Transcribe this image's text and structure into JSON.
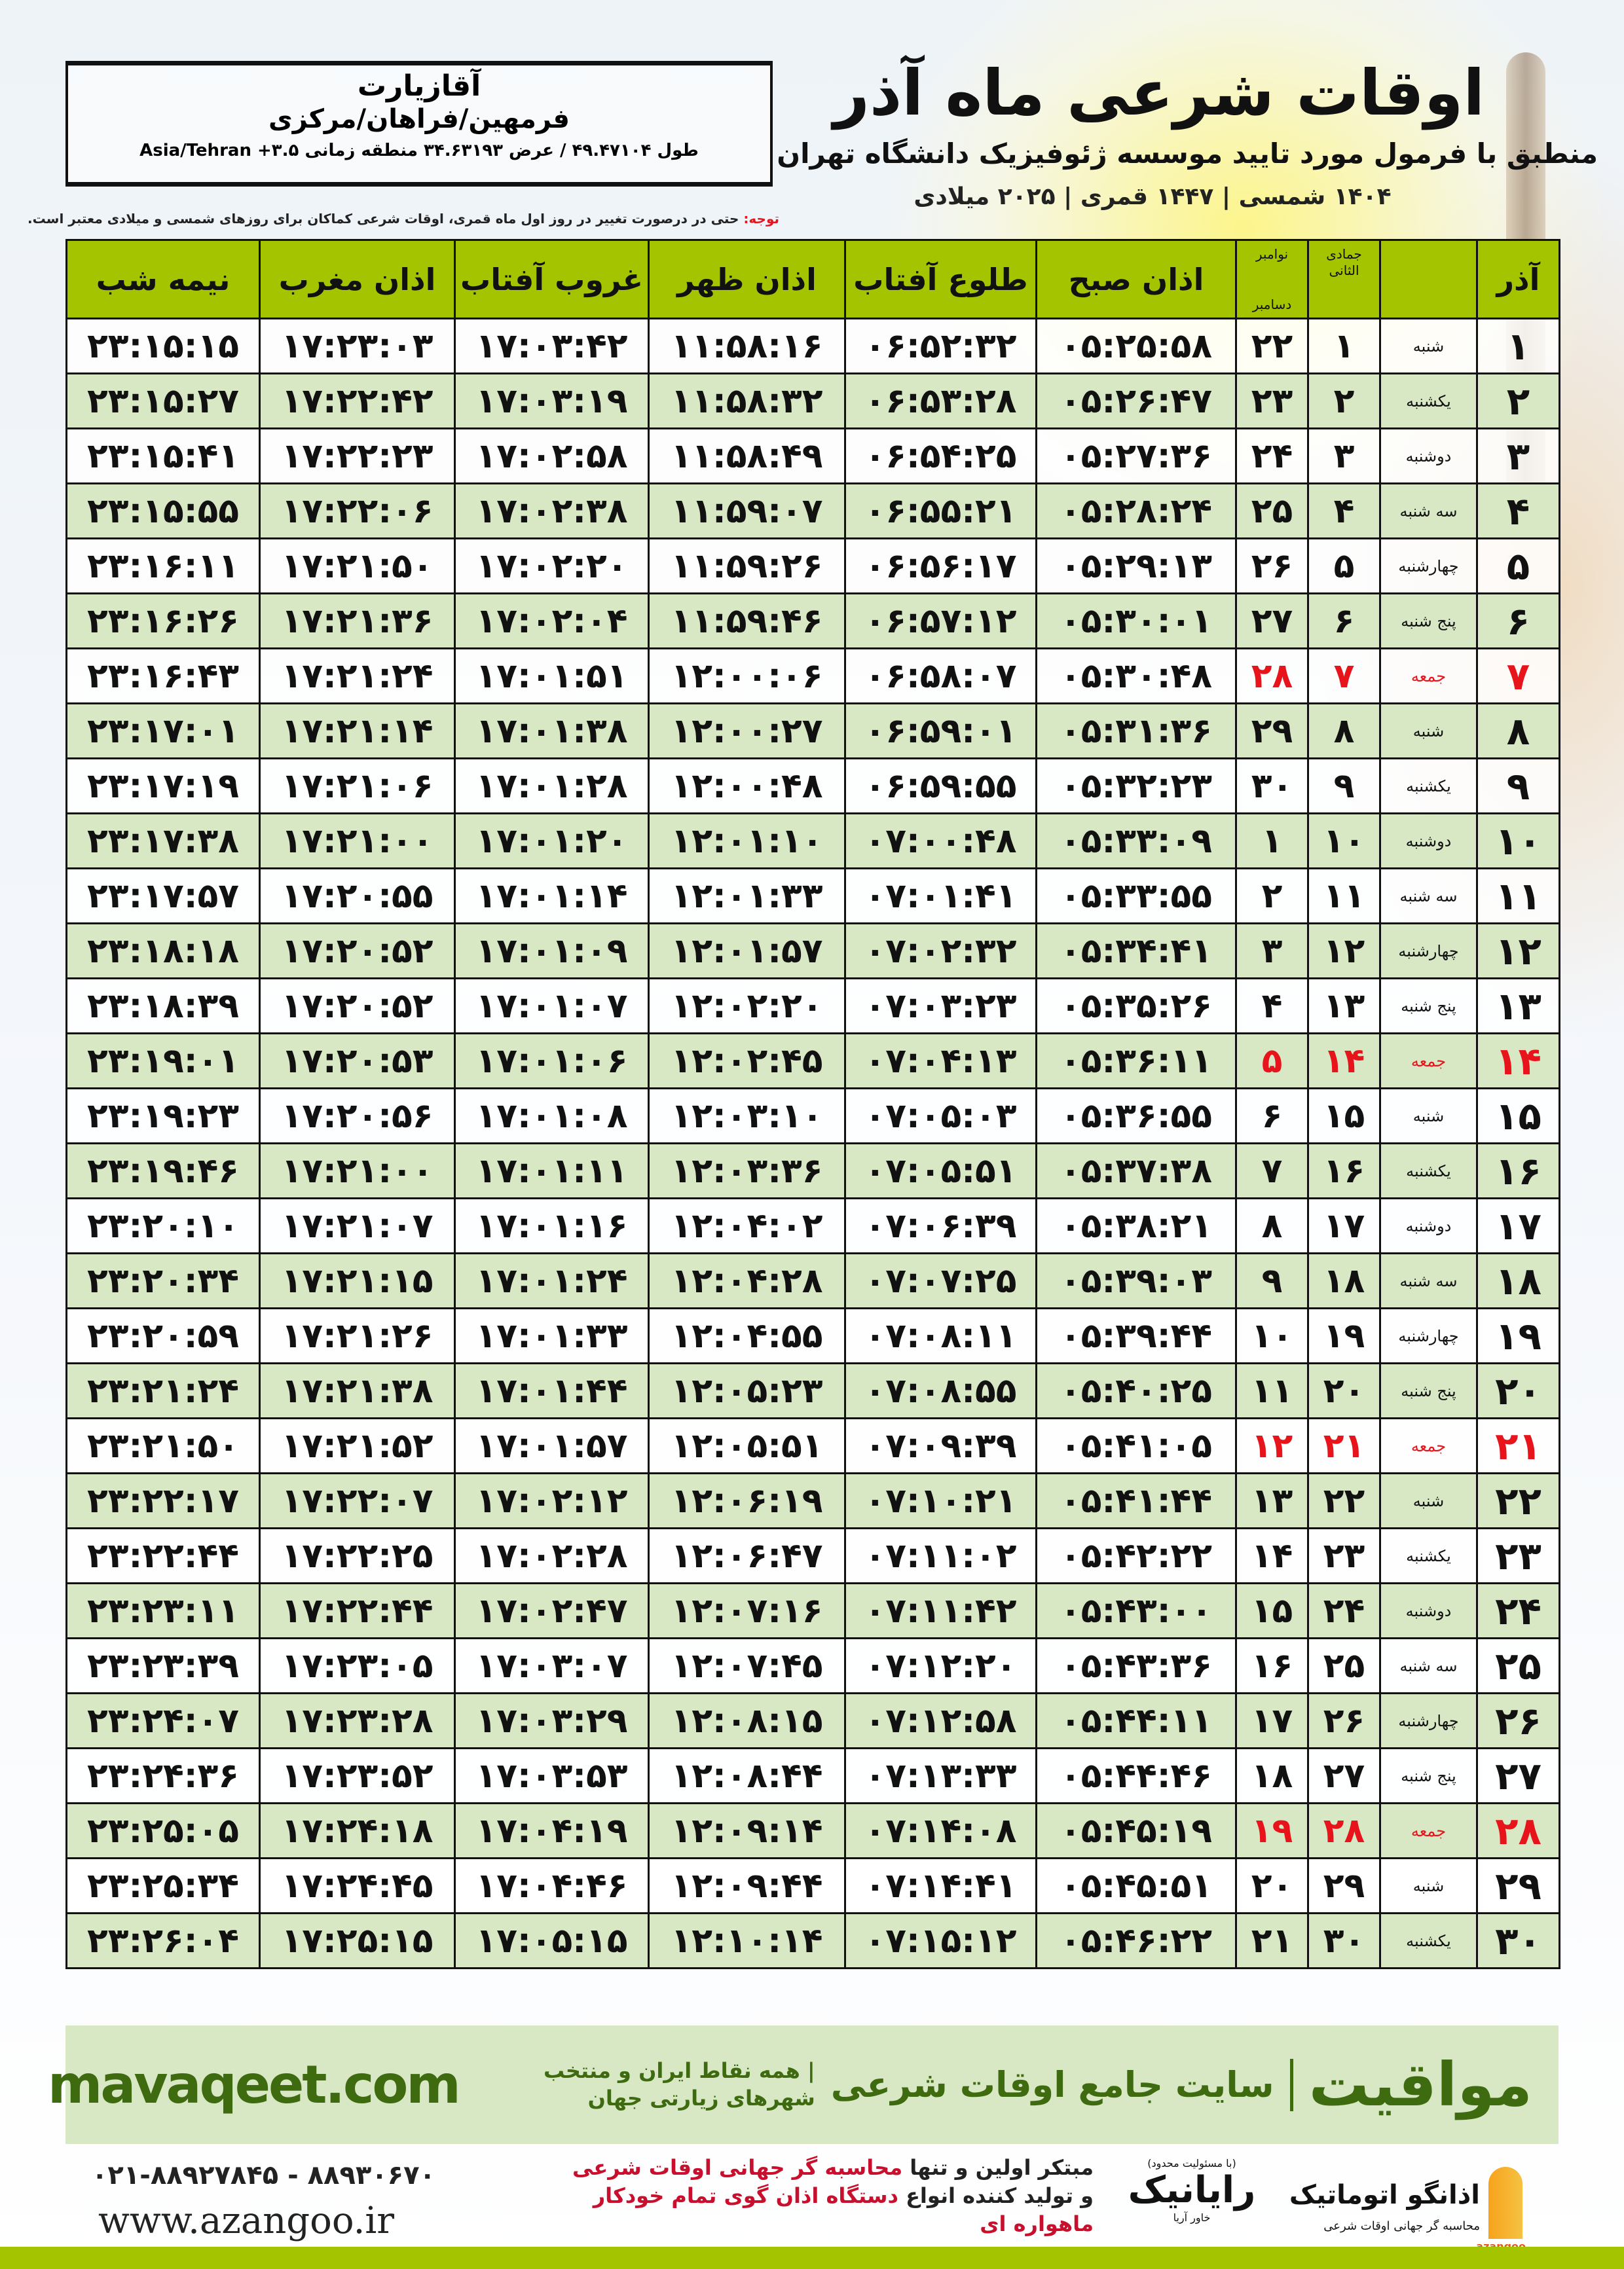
{
  "header": {
    "title": "اوقات شرعی ماه آذر",
    "subtitle": "منطبق با فرمول مورد تایید موسسه ژئوفیزیک دانشگاه تهران",
    "dateline": "۱۴۰۴ شمسی | ۱۴۴۷ قمری | ۲۰۲۵ میلادی"
  },
  "location": {
    "city": "آقازیارت",
    "region": "فرمهین/فراهان/مرکزی",
    "coords": "طول ۴۹.۴۷۱۰۴ / عرض ۳۴.۶۳۱۹۳ منطقه زمانی ۳.۵+ Asia/Tehran"
  },
  "note": {
    "label": "توجه:",
    "text": " حتی در درصورت تغییر در روز اول ماه قمری، اوقات شرعی کماکان برای روزهای شمسی و میلادی معتبر است."
  },
  "colors": {
    "header_green": "#a4c400",
    "row_green": "#d9e8c4",
    "friday_red": "#e8141c",
    "brand_green": "#3f6b10"
  },
  "table": {
    "headers": {
      "day": "آذر",
      "hijri": "جمادی الثانی",
      "greg_top": "نوامبر",
      "greg_bottom": "دسامبر",
      "fajr": "اذان صبح",
      "sunrise": "طلوع آفتاب",
      "dhuhr": "اذان ظهر",
      "sunset": "غروب آفتاب",
      "maghrib": "اذان مغرب",
      "midnight": "نیمه شب"
    },
    "rows": [
      {
        "day": "۱",
        "weekday": "شنبه",
        "hijri": "۱",
        "greg": "۲۲",
        "fajr": "۰۵:۲۵:۵۸",
        "sunrise": "۰۶:۵۲:۳۲",
        "dhuhr": "۱۱:۵۸:۱۶",
        "sunset": "۱۷:۰۳:۴۲",
        "maghrib": "۱۷:۲۳:۰۳",
        "midnight": "۲۳:۱۵:۱۵",
        "friday": false
      },
      {
        "day": "۲",
        "weekday": "یکشنبه",
        "hijri": "۲",
        "greg": "۲۳",
        "fajr": "۰۵:۲۶:۴۷",
        "sunrise": "۰۶:۵۳:۲۸",
        "dhuhr": "۱۱:۵۸:۳۲",
        "sunset": "۱۷:۰۳:۱۹",
        "maghrib": "۱۷:۲۲:۴۲",
        "midnight": "۲۳:۱۵:۲۷",
        "friday": false
      },
      {
        "day": "۳",
        "weekday": "دوشنبه",
        "hijri": "۳",
        "greg": "۲۴",
        "fajr": "۰۵:۲۷:۳۶",
        "sunrise": "۰۶:۵۴:۲۵",
        "dhuhr": "۱۱:۵۸:۴۹",
        "sunset": "۱۷:۰۲:۵۸",
        "maghrib": "۱۷:۲۲:۲۳",
        "midnight": "۲۳:۱۵:۴۱",
        "friday": false
      },
      {
        "day": "۴",
        "weekday": "سه شنبه",
        "hijri": "۴",
        "greg": "۲۵",
        "fajr": "۰۵:۲۸:۲۴",
        "sunrise": "۰۶:۵۵:۲۱",
        "dhuhr": "۱۱:۵۹:۰۷",
        "sunset": "۱۷:۰۲:۳۸",
        "maghrib": "۱۷:۲۲:۰۶",
        "midnight": "۲۳:۱۵:۵۵",
        "friday": false
      },
      {
        "day": "۵",
        "weekday": "چهارشنبه",
        "hijri": "۵",
        "greg": "۲۶",
        "fajr": "۰۵:۲۹:۱۳",
        "sunrise": "۰۶:۵۶:۱۷",
        "dhuhr": "۱۱:۵۹:۲۶",
        "sunset": "۱۷:۰۲:۲۰",
        "maghrib": "۱۷:۲۱:۵۰",
        "midnight": "۲۳:۱۶:۱۱",
        "friday": false
      },
      {
        "day": "۶",
        "weekday": "پنج شنبه",
        "hijri": "۶",
        "greg": "۲۷",
        "fajr": "۰۵:۳۰:۰۱",
        "sunrise": "۰۶:۵۷:۱۲",
        "dhuhr": "۱۱:۵۹:۴۶",
        "sunset": "۱۷:۰۲:۰۴",
        "maghrib": "۱۷:۲۱:۳۶",
        "midnight": "۲۳:۱۶:۲۶",
        "friday": false
      },
      {
        "day": "۷",
        "weekday": "جمعه",
        "hijri": "۷",
        "greg": "۲۸",
        "fajr": "۰۵:۳۰:۴۸",
        "sunrise": "۰۶:۵۸:۰۷",
        "dhuhr": "۱۲:۰۰:۰۶",
        "sunset": "۱۷:۰۱:۵۱",
        "maghrib": "۱۷:۲۱:۲۴",
        "midnight": "۲۳:۱۶:۴۳",
        "friday": true
      },
      {
        "day": "۸",
        "weekday": "شنبه",
        "hijri": "۸",
        "greg": "۲۹",
        "fajr": "۰۵:۳۱:۳۶",
        "sunrise": "۰۶:۵۹:۰۱",
        "dhuhr": "۱۲:۰۰:۲۷",
        "sunset": "۱۷:۰۱:۳۸",
        "maghrib": "۱۷:۲۱:۱۴",
        "midnight": "۲۳:۱۷:۰۱",
        "friday": false
      },
      {
        "day": "۹",
        "weekday": "یکشنبه",
        "hijri": "۹",
        "greg": "۳۰",
        "fajr": "۰۵:۳۲:۲۳",
        "sunrise": "۰۶:۵۹:۵۵",
        "dhuhr": "۱۲:۰۰:۴۸",
        "sunset": "۱۷:۰۱:۲۸",
        "maghrib": "۱۷:۲۱:۰۶",
        "midnight": "۲۳:۱۷:۱۹",
        "friday": false
      },
      {
        "day": "۱۰",
        "weekday": "دوشنبه",
        "hijri": "۱۰",
        "greg": "۱",
        "fajr": "۰۵:۳۳:۰۹",
        "sunrise": "۰۷:۰۰:۴۸",
        "dhuhr": "۱۲:۰۱:۱۰",
        "sunset": "۱۷:۰۱:۲۰",
        "maghrib": "۱۷:۲۱:۰۰",
        "midnight": "۲۳:۱۷:۳۸",
        "friday": false
      },
      {
        "day": "۱۱",
        "weekday": "سه شنبه",
        "hijri": "۱۱",
        "greg": "۲",
        "fajr": "۰۵:۳۳:۵۵",
        "sunrise": "۰۷:۰۱:۴۱",
        "dhuhr": "۱۲:۰۱:۳۳",
        "sunset": "۱۷:۰۱:۱۴",
        "maghrib": "۱۷:۲۰:۵۵",
        "midnight": "۲۳:۱۷:۵۷",
        "friday": false
      },
      {
        "day": "۱۲",
        "weekday": "چهارشنبه",
        "hijri": "۱۲",
        "greg": "۳",
        "fajr": "۰۵:۳۴:۴۱",
        "sunrise": "۰۷:۰۲:۳۲",
        "dhuhr": "۱۲:۰۱:۵۷",
        "sunset": "۱۷:۰۱:۰۹",
        "maghrib": "۱۷:۲۰:۵۲",
        "midnight": "۲۳:۱۸:۱۸",
        "friday": false
      },
      {
        "day": "۱۳",
        "weekday": "پنج شنبه",
        "hijri": "۱۳",
        "greg": "۴",
        "fajr": "۰۵:۳۵:۲۶",
        "sunrise": "۰۷:۰۳:۲۳",
        "dhuhr": "۱۲:۰۲:۲۰",
        "sunset": "۱۷:۰۱:۰۷",
        "maghrib": "۱۷:۲۰:۵۲",
        "midnight": "۲۳:۱۸:۳۹",
        "friday": false
      },
      {
        "day": "۱۴",
        "weekday": "جمعه",
        "hijri": "۱۴",
        "greg": "۵",
        "fajr": "۰۵:۳۶:۱۱",
        "sunrise": "۰۷:۰۴:۱۳",
        "dhuhr": "۱۲:۰۲:۴۵",
        "sunset": "۱۷:۰۱:۰۶",
        "maghrib": "۱۷:۲۰:۵۳",
        "midnight": "۲۳:۱۹:۰۱",
        "friday": true
      },
      {
        "day": "۱۵",
        "weekday": "شنبه",
        "hijri": "۱۵",
        "greg": "۶",
        "fajr": "۰۵:۳۶:۵۵",
        "sunrise": "۰۷:۰۵:۰۳",
        "dhuhr": "۱۲:۰۳:۱۰",
        "sunset": "۱۷:۰۱:۰۸",
        "maghrib": "۱۷:۲۰:۵۶",
        "midnight": "۲۳:۱۹:۲۳",
        "friday": false
      },
      {
        "day": "۱۶",
        "weekday": "یکشنبه",
        "hijri": "۱۶",
        "greg": "۷",
        "fajr": "۰۵:۳۷:۳۸",
        "sunrise": "۰۷:۰۵:۵۱",
        "dhuhr": "۱۲:۰۳:۳۶",
        "sunset": "۱۷:۰۱:۱۱",
        "maghrib": "۱۷:۲۱:۰۰",
        "midnight": "۲۳:۱۹:۴۶",
        "friday": false
      },
      {
        "day": "۱۷",
        "weekday": "دوشنبه",
        "hijri": "۱۷",
        "greg": "۸",
        "fajr": "۰۵:۳۸:۲۱",
        "sunrise": "۰۷:۰۶:۳۹",
        "dhuhr": "۱۲:۰۴:۰۲",
        "sunset": "۱۷:۰۱:۱۶",
        "maghrib": "۱۷:۲۱:۰۷",
        "midnight": "۲۳:۲۰:۱۰",
        "friday": false
      },
      {
        "day": "۱۸",
        "weekday": "سه شنبه",
        "hijri": "۱۸",
        "greg": "۹",
        "fajr": "۰۵:۳۹:۰۳",
        "sunrise": "۰۷:۰۷:۲۵",
        "dhuhr": "۱۲:۰۴:۲۸",
        "sunset": "۱۷:۰۱:۲۴",
        "maghrib": "۱۷:۲۱:۱۵",
        "midnight": "۲۳:۲۰:۳۴",
        "friday": false
      },
      {
        "day": "۱۹",
        "weekday": "چهارشنبه",
        "hijri": "۱۹",
        "greg": "۱۰",
        "fajr": "۰۵:۳۹:۴۴",
        "sunrise": "۰۷:۰۸:۱۱",
        "dhuhr": "۱۲:۰۴:۵۵",
        "sunset": "۱۷:۰۱:۳۳",
        "maghrib": "۱۷:۲۱:۲۶",
        "midnight": "۲۳:۲۰:۵۹",
        "friday": false
      },
      {
        "day": "۲۰",
        "weekday": "پنج شنبه",
        "hijri": "۲۰",
        "greg": "۱۱",
        "fajr": "۰۵:۴۰:۲۵",
        "sunrise": "۰۷:۰۸:۵۵",
        "dhuhr": "۱۲:۰۵:۲۳",
        "sunset": "۱۷:۰۱:۴۴",
        "maghrib": "۱۷:۲۱:۳۸",
        "midnight": "۲۳:۲۱:۲۴",
        "friday": false
      },
      {
        "day": "۲۱",
        "weekday": "جمعه",
        "hijri": "۲۱",
        "greg": "۱۲",
        "fajr": "۰۵:۴۱:۰۵",
        "sunrise": "۰۷:۰۹:۳۹",
        "dhuhr": "۱۲:۰۵:۵۱",
        "sunset": "۱۷:۰۱:۵۷",
        "maghrib": "۱۷:۲۱:۵۲",
        "midnight": "۲۳:۲۱:۵۰",
        "friday": true
      },
      {
        "day": "۲۲",
        "weekday": "شنبه",
        "hijri": "۲۲",
        "greg": "۱۳",
        "fajr": "۰۵:۴۱:۴۴",
        "sunrise": "۰۷:۱۰:۲۱",
        "dhuhr": "۱۲:۰۶:۱۹",
        "sunset": "۱۷:۰۲:۱۲",
        "maghrib": "۱۷:۲۲:۰۷",
        "midnight": "۲۳:۲۲:۱۷",
        "friday": false
      },
      {
        "day": "۲۳",
        "weekday": "یکشنبه",
        "hijri": "۲۳",
        "greg": "۱۴",
        "fajr": "۰۵:۴۲:۲۲",
        "sunrise": "۰۷:۱۱:۰۲",
        "dhuhr": "۱۲:۰۶:۴۷",
        "sunset": "۱۷:۰۲:۲۸",
        "maghrib": "۱۷:۲۲:۲۵",
        "midnight": "۲۳:۲۲:۴۴",
        "friday": false
      },
      {
        "day": "۲۴",
        "weekday": "دوشنبه",
        "hijri": "۲۴",
        "greg": "۱۵",
        "fajr": "۰۵:۴۳:۰۰",
        "sunrise": "۰۷:۱۱:۴۲",
        "dhuhr": "۱۲:۰۷:۱۶",
        "sunset": "۱۷:۰۲:۴۷",
        "maghrib": "۱۷:۲۲:۴۴",
        "midnight": "۲۳:۲۳:۱۱",
        "friday": false
      },
      {
        "day": "۲۵",
        "weekday": "سه شنبه",
        "hijri": "۲۵",
        "greg": "۱۶",
        "fajr": "۰۵:۴۳:۳۶",
        "sunrise": "۰۷:۱۲:۲۰",
        "dhuhr": "۱۲:۰۷:۴۵",
        "sunset": "۱۷:۰۳:۰۷",
        "maghrib": "۱۷:۲۳:۰۵",
        "midnight": "۲۳:۲۳:۳۹",
        "friday": false
      },
      {
        "day": "۲۶",
        "weekday": "چهارشنبه",
        "hijri": "۲۶",
        "greg": "۱۷",
        "fajr": "۰۵:۴۴:۱۱",
        "sunrise": "۰۷:۱۲:۵۸",
        "dhuhr": "۱۲:۰۸:۱۵",
        "sunset": "۱۷:۰۳:۲۹",
        "maghrib": "۱۷:۲۳:۲۸",
        "midnight": "۲۳:۲۴:۰۷",
        "friday": false
      },
      {
        "day": "۲۷",
        "weekday": "پنج شنبه",
        "hijri": "۲۷",
        "greg": "۱۸",
        "fajr": "۰۵:۴۴:۴۶",
        "sunrise": "۰۷:۱۳:۳۳",
        "dhuhr": "۱۲:۰۸:۴۴",
        "sunset": "۱۷:۰۳:۵۳",
        "maghrib": "۱۷:۲۳:۵۲",
        "midnight": "۲۳:۲۴:۳۶",
        "friday": false
      },
      {
        "day": "۲۸",
        "weekday": "جمعه",
        "hijri": "۲۸",
        "greg": "۱۹",
        "fajr": "۰۵:۴۵:۱۹",
        "sunrise": "۰۷:۱۴:۰۸",
        "dhuhr": "۱۲:۰۹:۱۴",
        "sunset": "۱۷:۰۴:۱۹",
        "maghrib": "۱۷:۲۴:۱۸",
        "midnight": "۲۳:۲۵:۰۵",
        "friday": true
      },
      {
        "day": "۲۹",
        "weekday": "شنبه",
        "hijri": "۲۹",
        "greg": "۲۰",
        "fajr": "۰۵:۴۵:۵۱",
        "sunrise": "۰۷:۱۴:۴۱",
        "dhuhr": "۱۲:۰۹:۴۴",
        "sunset": "۱۷:۰۴:۴۶",
        "maghrib": "۱۷:۲۴:۴۵",
        "midnight": "۲۳:۲۵:۳۴",
        "friday": false
      },
      {
        "day": "۳۰",
        "weekday": "یکشنبه",
        "hijri": "۳۰",
        "greg": "۲۱",
        "fajr": "۰۵:۴۶:۲۲",
        "sunrise": "۰۷:۱۵:۱۲",
        "dhuhr": "۱۲:۱۰:۱۴",
        "sunset": "۱۷:۰۵:۱۵",
        "maghrib": "۱۷:۲۵:۱۵",
        "midnight": "۲۳:۲۶:۰۴",
        "friday": false
      }
    ]
  },
  "banner": {
    "brand": "مواقیت",
    "main": "سایت جامع اوقات شرعی",
    "tagline": "| همه نقاط ایران و منتخب شهرهای زیارتی جهان",
    "url": "mavaqeet.com"
  },
  "footer": {
    "phones": "۰۲۱-۸۸۹۲۷۸۴۵ - ۸۸۹۳۰۶۷۰",
    "website": "www.azangoo.ir",
    "promo_line1_a": "مبتکر اولین و تنها ",
    "promo_line1_b": "محاسبه گر جهانی اوقات شرعی",
    "promo_line2_a": "و تولید کننده انواع ",
    "promo_line2_b": "دستگاه اذان گوی تمام خودکار ماهواره ای",
    "rayanik_name": "رایانیک",
    "rayanik_sub": "خاور آریا",
    "rayanik_note": "(با مسئولیت محدود)",
    "azangoo_name": "اذانگو اتوماتیک",
    "azangoo_tag": "محاسبه گر جهانی اوقات شرعی",
    "azangoo_en": "azangoo"
  }
}
